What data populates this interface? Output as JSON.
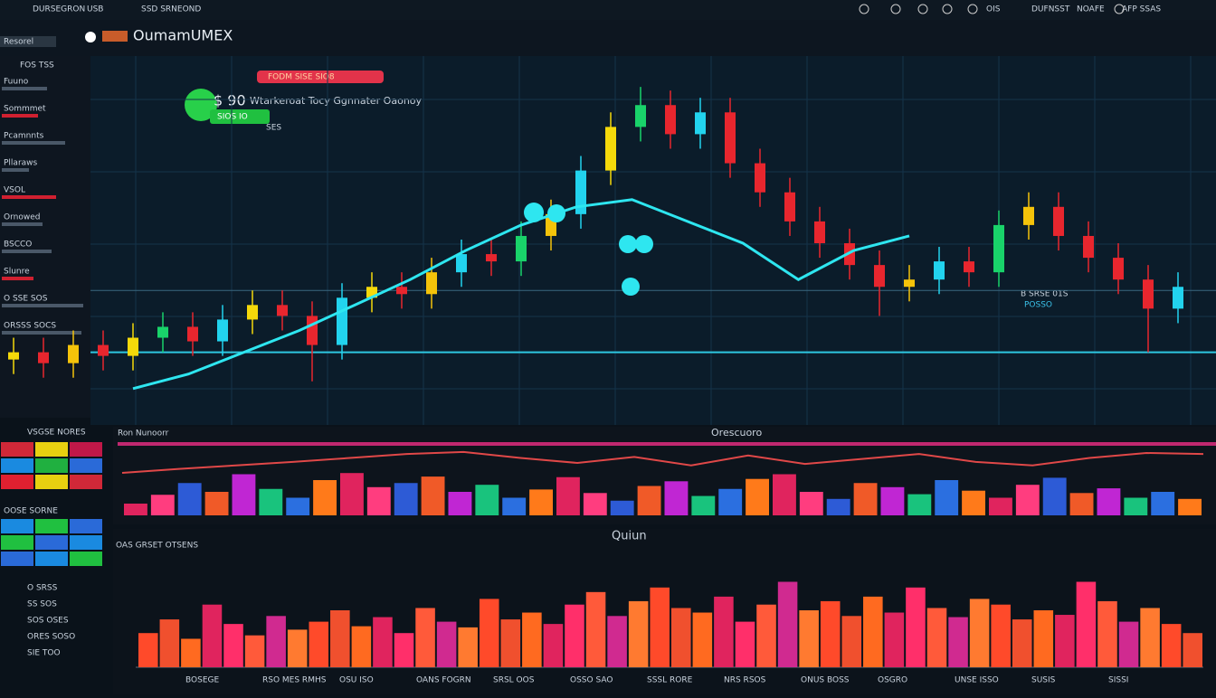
{
  "topbar": {
    "left": [
      "DURSEGRON",
      "USB",
      "SSD SRNEOND"
    ],
    "right": [
      "OIS",
      "DUFNSST",
      "NOAFE",
      "AFP SSAS"
    ]
  },
  "header": {
    "logo": "OumamUMEX",
    "tab": "Resorel"
  },
  "sidebar": {
    "title": "FOS TSS",
    "items": [
      "Fuuno",
      "Sommmet",
      "Pcamnnts",
      "Pllaraws",
      "VSOL",
      "Ornowed",
      "BSCCO",
      "Slunre",
      "O SSE SOS",
      "ORSSS SOCS"
    ]
  },
  "price_chart": {
    "badge": "FODM SISE SIO8",
    "price": "$ 90",
    "chip": "SIOS IO",
    "ticker": "SES",
    "note": "Wtarkeroat Tocy Ggnnater Oaonoy",
    "marker": "B SRSE 01S",
    "marker_sub": "POSSO",
    "ylim": [
      0,
      100
    ],
    "levels": [
      37,
      20
    ],
    "candles": [
      [
        18,
        24,
        14,
        20
      ],
      [
        20,
        24,
        13,
        17
      ],
      [
        17,
        26,
        13,
        22
      ],
      [
        22,
        26,
        15,
        19
      ],
      [
        19,
        28,
        15,
        24
      ],
      [
        24,
        31,
        20,
        27
      ],
      [
        27,
        31,
        19,
        23
      ],
      [
        23,
        33,
        19,
        29
      ],
      [
        29,
        37,
        25,
        33
      ],
      [
        33,
        37,
        26,
        30
      ],
      [
        30,
        34,
        12,
        22
      ],
      [
        22,
        39,
        18,
        35
      ],
      [
        35,
        42,
        31,
        38
      ],
      [
        38,
        42,
        32,
        36
      ],
      [
        36,
        46,
        32,
        42
      ],
      [
        42,
        51,
        38,
        47
      ],
      [
        47,
        51,
        41,
        45
      ],
      [
        45,
        56,
        41,
        52
      ],
      [
        52,
        62,
        48,
        58
      ],
      [
        58,
        74,
        54,
        70
      ],
      [
        70,
        86,
        66,
        82
      ],
      [
        82,
        93,
        78,
        88
      ],
      [
        88,
        92,
        76,
        80
      ],
      [
        80,
        90,
        76,
        86
      ],
      [
        86,
        90,
        68,
        72
      ],
      [
        72,
        76,
        60,
        64
      ],
      [
        64,
        68,
        52,
        56
      ],
      [
        56,
        60,
        46,
        50
      ],
      [
        50,
        54,
        40,
        44
      ],
      [
        44,
        48,
        30,
        38
      ],
      [
        38,
        44,
        34,
        40
      ],
      [
        40,
        49,
        36,
        45
      ],
      [
        45,
        49,
        38,
        42
      ],
      [
        42,
        59,
        38,
        55
      ],
      [
        55,
        64,
        51,
        60
      ],
      [
        60,
        64,
        48,
        52
      ],
      [
        52,
        56,
        42,
        46
      ],
      [
        46,
        50,
        36,
        40
      ],
      [
        40,
        44,
        20,
        32
      ],
      [
        32,
        42,
        28,
        38
      ]
    ],
    "trend_line": [
      10,
      14,
      20,
      26,
      33,
      40,
      48,
      55,
      60,
      62,
      56,
      50,
      40,
      48,
      52
    ]
  },
  "middle_panel": {
    "label": "Ron Nunoorr",
    "title": "Orescuoro",
    "ylim": [
      0,
      100
    ],
    "bars": [
      20,
      35,
      55,
      40,
      70,
      45,
      30,
      60,
      72,
      48,
      55,
      66,
      40,
      52,
      30,
      44,
      65,
      38,
      25,
      50,
      58,
      33,
      45,
      62,
      70,
      40,
      28,
      55,
      48,
      36,
      60,
      42,
      30,
      52,
      64,
      38,
      46,
      30,
      40,
      28
    ],
    "line": [
      40,
      48,
      55,
      62,
      70,
      78,
      82,
      70,
      60,
      72,
      55,
      75,
      58,
      68,
      78,
      62,
      55,
      70,
      80,
      78
    ]
  },
  "bottom_panel": {
    "label": "OAS GRSET OTSENS",
    "title": "Quiun",
    "ylim": [
      0,
      100
    ],
    "bars": [
      30,
      42,
      25,
      55,
      38,
      28,
      45,
      33,
      40,
      50,
      36,
      44,
      30,
      52,
      40,
      35,
      60,
      42,
      48,
      38,
      55,
      66,
      45,
      58,
      70,
      52,
      48,
      62,
      40,
      55,
      75,
      50,
      58,
      45,
      62,
      48,
      70,
      52,
      44,
      60,
      55,
      42,
      50,
      46,
      75,
      58,
      40,
      52,
      38,
      30
    ],
    "xlabels": [
      "BOSEGE",
      "RSO MES RMHS",
      "OSU ISO",
      "OANS FOGRN",
      "SRSL OOS",
      "OSSO SAO",
      "SSSL RORE",
      "NRS RSOS",
      "ONUS BOSS",
      "OSGRO",
      "UNSE ISSO",
      "SUSIS",
      "SISSI"
    ]
  },
  "left_panels": {
    "top": "VSGSE NORES",
    "mid": "OOSE SORNE",
    "rows": [
      "O SRSS",
      "SS SOS",
      "SOS OSES",
      "ORES SOSO",
      "SIE TOO"
    ]
  }
}
